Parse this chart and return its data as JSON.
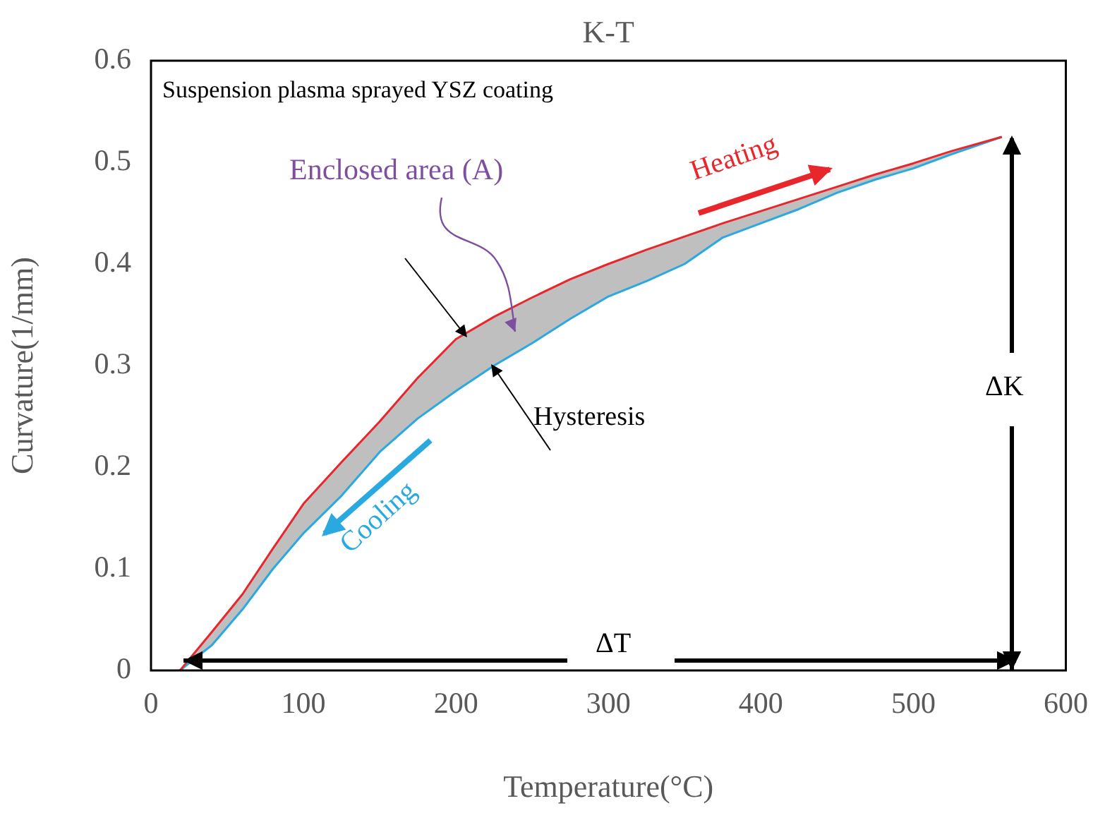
{
  "chart_data": {
    "type": "line",
    "title": "K-T",
    "xlabel": "Temperature(°C)",
    "ylabel": "Curvature(1/mm)",
    "x": [
      19,
      40,
      60,
      80,
      100,
      125,
      150,
      175,
      200,
      225,
      250,
      275,
      300,
      325,
      350,
      375,
      400,
      425,
      450,
      475,
      500,
      525,
      558
    ],
    "series": [
      {
        "color": "#e8262b",
        "values": [
          0,
          0.038,
          0.075,
          0.12,
          0.164,
          0.205,
          0.245,
          0.288,
          0.326,
          0.348,
          0.367,
          0.385,
          0.4,
          0.414,
          0.427,
          0.44,
          0.452,
          0.464,
          0.476,
          0.488,
          0.499,
          0.511,
          0.525
        ]
      },
      {
        "color": "#29a9e0",
        "values": [
          0,
          0.025,
          0.06,
          0.1,
          0.135,
          0.172,
          0.215,
          0.248,
          0.275,
          0.3,
          0.322,
          0.346,
          0.368,
          0.383,
          0.4,
          0.426,
          0.44,
          0.454,
          0.47,
          0.483,
          0.494,
          0.508,
          0.525
        ]
      }
    ],
    "xlim": [
      0,
      600
    ],
    "xticks": [
      0,
      100,
      200,
      300,
      400,
      500,
      600
    ],
    "ylim": [
      0,
      0.6
    ],
    "yticks": [
      0,
      0.1,
      0.2,
      0.3,
      0.4,
      0.5,
      0.6
    ],
    "grid": false,
    "legend": false,
    "marker": "none",
    "line_style": "solid",
    "annotations": [
      "Suspension plasma sprayed YSZ coating",
      "Enclosed area (A)",
      "Heating",
      "Cooling",
      {
        "text": "Hysteresis",
        "x": 224,
        "y": 0.3
      },
      "ΔK",
      "ΔT"
    ]
  }
}
